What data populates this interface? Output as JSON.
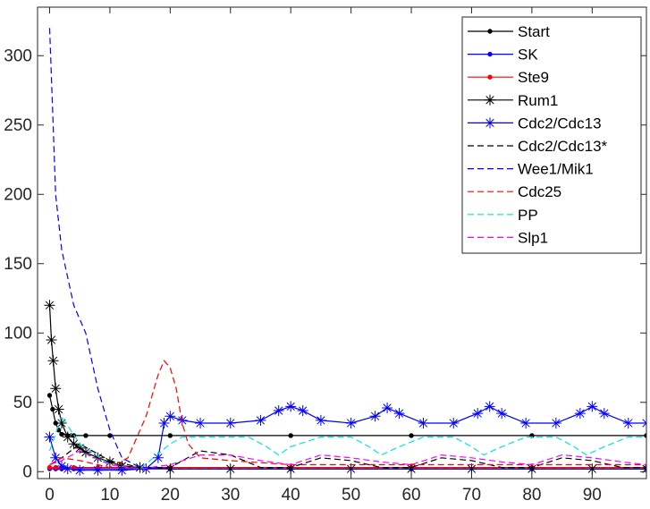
{
  "chart_data": {
    "type": "line",
    "title": "",
    "xlabel": "",
    "ylabel": "",
    "xlim": [
      -2,
      99
    ],
    "ylim": [
      -5,
      335
    ],
    "xticks": [
      0,
      10,
      20,
      30,
      40,
      50,
      60,
      70,
      80,
      90
    ],
    "yticks": [
      0,
      50,
      100,
      150,
      200,
      250,
      300
    ],
    "grid": false,
    "legend_position": "top-right",
    "series": [
      {
        "name": "Start",
        "color": "#000000",
        "style": "solid",
        "marker": "dot",
        "x": [
          0,
          0.5,
          1,
          1.5,
          2,
          3,
          4,
          6,
          10,
          20,
          40,
          60,
          80,
          99
        ],
        "y": [
          55,
          45,
          35,
          30,
          27,
          26,
          26,
          26,
          26,
          26,
          26,
          26,
          26,
          26
        ]
      },
      {
        "name": "SK",
        "color": "#0000ff",
        "style": "solid",
        "marker": "dot",
        "x": [
          0,
          1,
          2,
          4,
          8,
          20,
          40,
          60,
          80,
          99
        ],
        "y": [
          2,
          2,
          2,
          2,
          2,
          2,
          2,
          2,
          2,
          2
        ]
      },
      {
        "name": "Ste9",
        "color": "#ff0000",
        "style": "solid",
        "marker": "dot",
        "x": [
          0,
          1,
          2,
          4,
          8,
          20,
          40,
          60,
          80,
          99
        ],
        "y": [
          3,
          3,
          3,
          3,
          3,
          3,
          3,
          3,
          3,
          3
        ]
      },
      {
        "name": "Rum1",
        "color": "#000000",
        "style": "solid",
        "marker": "star",
        "x": [
          0,
          0.3,
          0.6,
          1,
          1.5,
          2,
          3,
          4,
          5,
          6,
          8,
          10,
          12,
          15,
          20,
          30,
          40,
          50,
          60,
          70,
          80,
          90,
          99
        ],
        "y": [
          120,
          95,
          80,
          60,
          45,
          35,
          25,
          20,
          17,
          14,
          10,
          7,
          4,
          3,
          2,
          2,
          2,
          2,
          2,
          2,
          2,
          2,
          2
        ]
      },
      {
        "name": "Cdc2/Cdc13",
        "color": "#0000ff",
        "style": "solid",
        "marker": "star",
        "x": [
          0,
          1,
          2,
          3,
          5,
          8,
          12,
          16,
          18,
          19,
          20,
          22,
          25,
          30,
          35,
          38,
          40,
          42,
          45,
          50,
          54,
          56,
          58,
          62,
          67,
          71,
          73,
          75,
          79,
          84,
          88,
          90,
          92,
          96,
          99
        ],
        "y": [
          25,
          10,
          4,
          2,
          1,
          1,
          1,
          2,
          10,
          35,
          40,
          37,
          35,
          35,
          37,
          44,
          47,
          44,
          37,
          35,
          40,
          46,
          42,
          35,
          35,
          42,
          47,
          42,
          35,
          35,
          42,
          47,
          42,
          35,
          35
        ]
      },
      {
        "name": "Cdc2/Cdc13*",
        "color": "#000000",
        "style": "dashed",
        "marker": "none",
        "x": [
          0,
          2,
          5,
          10,
          15,
          20,
          25,
          30,
          35,
          40,
          45,
          50,
          55,
          60,
          65,
          70,
          75,
          80,
          85,
          90,
          95,
          99
        ],
        "y": [
          5,
          10,
          20,
          8,
          3,
          3,
          15,
          12,
          3,
          3,
          10,
          8,
          3,
          3,
          10,
          8,
          3,
          3,
          10,
          8,
          3,
          3
        ]
      },
      {
        "name": "Wee1/Mik1",
        "color": "#0000ff",
        "style": "dashed",
        "marker": "none",
        "x": [
          0,
          0.5,
          1,
          2,
          4,
          6,
          8,
          10,
          12,
          15,
          20,
          40,
          60,
          80,
          99
        ],
        "y": [
          320,
          260,
          200,
          160,
          120,
          100,
          60,
          30,
          10,
          3,
          2,
          2,
          2,
          2,
          2
        ]
      },
      {
        "name": "Cdc25",
        "color": "#ff0000",
        "style": "dashed",
        "marker": "none",
        "x": [
          0,
          2,
          5,
          10,
          13,
          16,
          18,
          19,
          20,
          21,
          22,
          23,
          25,
          30,
          40,
          50,
          60,
          70,
          80,
          90,
          99
        ],
        "y": [
          5,
          10,
          8,
          3,
          10,
          40,
          70,
          80,
          75,
          60,
          35,
          20,
          10,
          8,
          5,
          5,
          5,
          5,
          5,
          5,
          5
        ]
      },
      {
        "name": "PP",
        "color": "#00e5e5",
        "style": "dashed",
        "marker": "none",
        "x": [
          0,
          2,
          5,
          10,
          15,
          20,
          22,
          28,
          33,
          36,
          38,
          40,
          45,
          50,
          53,
          55,
          58,
          62,
          67,
          70,
          72,
          75,
          79,
          84,
          87,
          89,
          92,
          96,
          99
        ],
        "y": [
          15,
          40,
          20,
          5,
          2,
          20,
          25,
          25,
          25,
          18,
          12,
          18,
          25,
          25,
          18,
          12,
          18,
          25,
          25,
          18,
          12,
          18,
          25,
          25,
          18,
          12,
          18,
          25,
          25
        ]
      },
      {
        "name": "Slp1",
        "color": "#ff00ff",
        "style": "dashed",
        "marker": "none",
        "x": [
          0,
          2,
          5,
          10,
          15,
          20,
          25,
          30,
          35,
          40,
          45,
          50,
          55,
          60,
          65,
          70,
          75,
          80,
          85,
          90,
          95,
          99
        ],
        "y": [
          5,
          8,
          15,
          5,
          2,
          5,
          12,
          12,
          8,
          5,
          12,
          10,
          7,
          5,
          12,
          10,
          7,
          5,
          12,
          10,
          7,
          5
        ]
      }
    ]
  }
}
